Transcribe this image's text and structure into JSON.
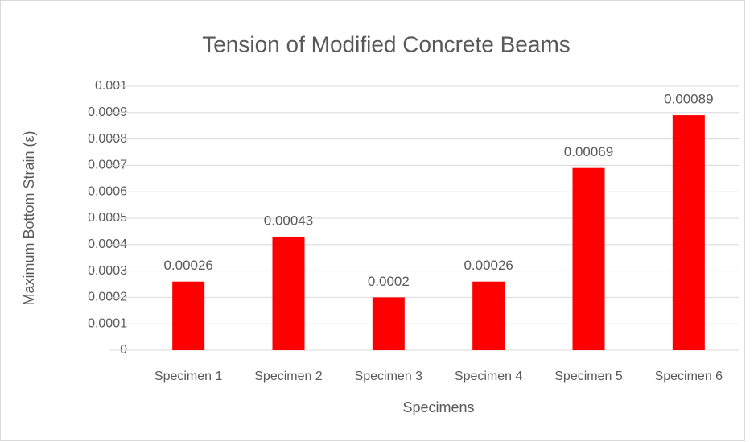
{
  "chart_data": {
    "type": "bar",
    "title": "Tension of Modified Concrete Beams",
    "x_label": "Specimens",
    "y_label": "Maximum Bottom Strain (ε)",
    "categories": [
      "Specimen 1",
      "Specimen 2",
      "Specimen 3",
      "Specimen 4",
      "Specimen 5",
      "Specimen 6"
    ],
    "values": [
      0.00026,
      0.00043,
      0.0002,
      0.00026,
      0.00069,
      0.00089
    ],
    "color": "#ff0000",
    "ylim": [
      0,
      0.001
    ],
    "yticks": [
      0,
      0.0001,
      0.0002,
      0.0003,
      0.0004,
      0.0005,
      0.0006,
      0.0007,
      0.0008,
      0.0009,
      0.001
    ],
    "grid": true
  }
}
